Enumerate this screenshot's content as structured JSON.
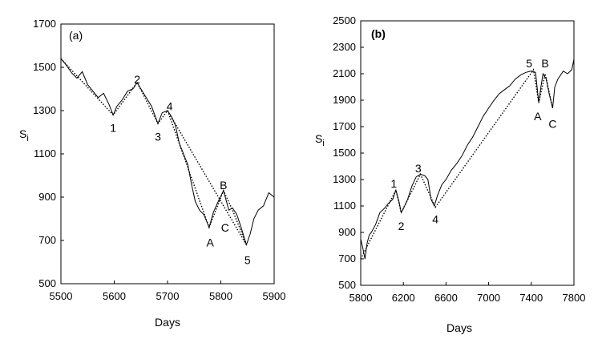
{
  "chart_data": [
    {
      "type": "line",
      "panel_label": "(a)",
      "xlabel": "Days",
      "ylabel_main": "S",
      "ylabel_sub": "i",
      "xlim": [
        5500,
        5900
      ],
      "ylim": [
        500,
        1700
      ],
      "xticks": [
        5500,
        5600,
        5700,
        5800,
        5900
      ],
      "yticks": [
        500,
        700,
        900,
        1100,
        1300,
        1500,
        1700
      ],
      "series": [
        {
          "x": [
            5500,
            5510,
            5520,
            5530,
            5540,
            5550,
            5560,
            5570,
            5580,
            5590,
            5598,
            5605,
            5615,
            5625,
            5635,
            5643,
            5650,
            5660,
            5670,
            5682,
            5690,
            5700,
            5708,
            5715,
            5722,
            5730,
            5738,
            5745,
            5752,
            5760,
            5768,
            5778,
            5786,
            5795,
            5805,
            5815,
            5822,
            5830,
            5838,
            5848,
            5855,
            5862,
            5870,
            5880,
            5890,
            5900
          ],
          "y": [
            1540,
            1510,
            1475,
            1450,
            1480,
            1420,
            1390,
            1360,
            1380,
            1330,
            1280,
            1320,
            1350,
            1390,
            1400,
            1430,
            1400,
            1360,
            1320,
            1240,
            1290,
            1300,
            1270,
            1230,
            1150,
            1100,
            1050,
            960,
            880,
            840,
            820,
            760,
            830,
            880,
            930,
            840,
            850,
            820,
            760,
            680,
            730,
            800,
            840,
            860,
            920,
            900
          ]
        }
      ],
      "wave_path_x": [
        5500,
        5598,
        5643,
        5682,
        5700,
        5778,
        5805,
        5822,
        5848
      ],
      "wave_path_y": [
        1540,
        1280,
        1430,
        1240,
        1300,
        760,
        930,
        840,
        680
      ],
      "wave_path2_x": [
        5700,
        5848
      ],
      "wave_path2_y": [
        1300,
        680
      ],
      "annotations": [
        {
          "label": "1",
          "x": 5598,
          "y": 1220
        },
        {
          "label": "2",
          "x": 5643,
          "y": 1445
        },
        {
          "label": "3",
          "x": 5682,
          "y": 1180
        },
        {
          "label": "4",
          "x": 5704,
          "y": 1320
        },
        {
          "label": "A",
          "x": 5780,
          "y": 690
        },
        {
          "label": "B",
          "x": 5805,
          "y": 955
        },
        {
          "label": "C",
          "x": 5808,
          "y": 760
        },
        {
          "label": "5",
          "x": 5850,
          "y": 610
        }
      ]
    },
    {
      "type": "line",
      "panel_label": "(b)",
      "xlabel": "Days",
      "ylabel_main": "S",
      "ylabel_sub": "i",
      "xlim": [
        5800,
        7800
      ],
      "ylim": [
        500,
        2500
      ],
      "xticks": [
        5800,
        6200,
        6600,
        7000,
        7400,
        7800
      ],
      "yticks": [
        500,
        700,
        900,
        1100,
        1300,
        1500,
        1700,
        1900,
        2100,
        2300,
        2500
      ],
      "series": [
        {
          "x": [
            5800,
            5820,
            5840,
            5860,
            5880,
            5900,
            5940,
            5980,
            6020,
            6060,
            6100,
            6130,
            6160,
            6180,
            6200,
            6240,
            6280,
            6320,
            6360,
            6400,
            6430,
            6460,
            6490,
            6520,
            6560,
            6600,
            6650,
            6700,
            6750,
            6800,
            6850,
            6900,
            6950,
            7000,
            7050,
            7100,
            7150,
            7200,
            7250,
            7300,
            7350,
            7400,
            7440,
            7470,
            7490,
            7510,
            7540,
            7570,
            7600,
            7620,
            7650,
            7700,
            7740,
            7780,
            7800
          ],
          "y": [
            850,
            780,
            700,
            820,
            880,
            900,
            960,
            1050,
            1080,
            1120,
            1150,
            1220,
            1130,
            1050,
            1080,
            1150,
            1250,
            1320,
            1340,
            1330,
            1300,
            1150,
            1100,
            1180,
            1260,
            1300,
            1370,
            1420,
            1480,
            1560,
            1620,
            1700,
            1780,
            1840,
            1900,
            1950,
            1980,
            2010,
            2060,
            2090,
            2110,
            2120,
            2110,
            1880,
            2000,
            2100,
            2060,
            1940,
            1840,
            2000,
            2060,
            2120,
            2100,
            2130,
            2210
          ]
        }
      ],
      "wave_path_x": [
        5800,
        6130,
        6180,
        6360,
        6500,
        7420,
        7470,
        7530,
        7600
      ],
      "wave_path_y": [
        700,
        1220,
        1050,
        1340,
        1090,
        2130,
        1880,
        2100,
        1840
      ],
      "wave_path2_x": [],
      "wave_path2_y": [],
      "annotations": [
        {
          "label": "1",
          "x": 6110,
          "y": 1270
        },
        {
          "label": "2",
          "x": 6180,
          "y": 950
        },
        {
          "label": "3",
          "x": 6340,
          "y": 1385
        },
        {
          "label": "4",
          "x": 6500,
          "y": 1000
        },
        {
          "label": "5",
          "x": 7380,
          "y": 2180
        },
        {
          "label": "B",
          "x": 7530,
          "y": 2180
        },
        {
          "label": "A",
          "x": 7460,
          "y": 1780
        },
        {
          "label": "C",
          "x": 7600,
          "y": 1720
        }
      ]
    }
  ]
}
